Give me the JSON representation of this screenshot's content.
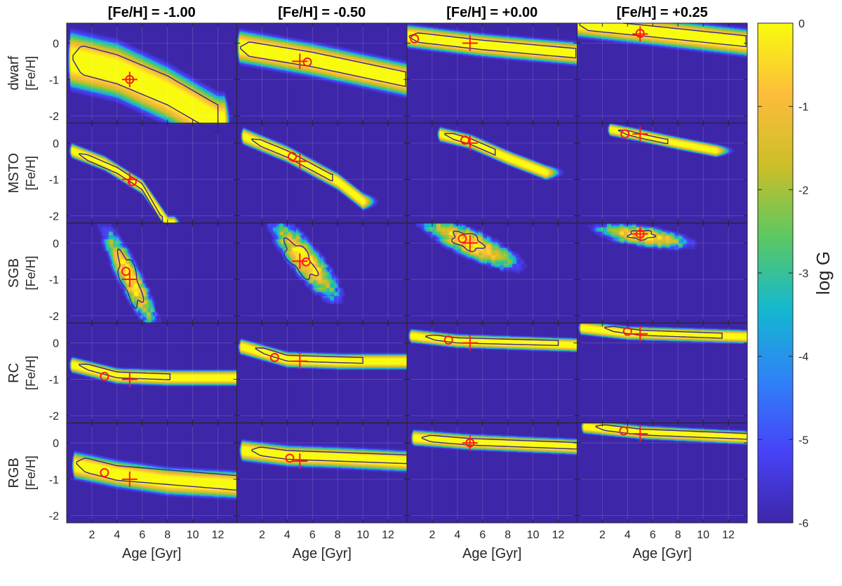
{
  "chart_data": {
    "type": "heatmap",
    "panel_titles": [
      "[Fe/H] = -1.00",
      "[Fe/H] = -0.50",
      "[Fe/H] = +0.00",
      "[Fe/H] = +0.25"
    ],
    "row_labels": [
      "dwarf",
      "MSTO",
      "SGB",
      "RC",
      "RGB"
    ],
    "ylabel": "[Fe/H]",
    "xlabel": "Age [Gyr]",
    "colorbar_label": "log G",
    "xlim": [
      0,
      13.5
    ],
    "ylim": [
      -2.2,
      0.55
    ],
    "x_ticks": [
      "2",
      "4",
      "6",
      "8",
      "10",
      "12"
    ],
    "y_ticks": [
      "0",
      "-1",
      "-2"
    ],
    "colorbar_range": [
      -6,
      0
    ],
    "colorbar_ticks": [
      "0",
      "-1",
      "-2",
      "-3",
      "-4",
      "-5",
      "-6"
    ],
    "true_age_gyr": 5,
    "true_feh": [
      -1.0,
      -0.5,
      0.0,
      0.25
    ],
    "estimates": [
      [
        [
          5.0,
          -1.0
        ],
        [
          5.6,
          -0.52
        ],
        [
          0.6,
          0.12
        ],
        [
          5.0,
          0.27
        ]
      ],
      [
        [
          5.2,
          -1.06
        ],
        [
          4.4,
          -0.37
        ],
        [
          4.6,
          0.08
        ],
        [
          3.8,
          0.25
        ]
      ],
      [
        [
          4.7,
          -0.78
        ],
        [
          5.5,
          -0.52
        ],
        [
          4.4,
          0.12
        ],
        [
          5.0,
          0.25
        ]
      ],
      [
        [
          3.0,
          -0.92
        ],
        [
          3.0,
          -0.4
        ],
        [
          3.3,
          0.08
        ],
        [
          4.0,
          0.32
        ]
      ],
      [
        [
          3.0,
          -0.82
        ],
        [
          4.2,
          -0.42
        ],
        [
          5.0,
          0.0
        ],
        [
          3.7,
          0.33
        ]
      ]
    ],
    "colors": {
      "colormap": [
        "#3e26a8",
        "#4743f8",
        "#2f82f7",
        "#14b8cf",
        "#5bc862",
        "#cbbf27",
        "#fdbc3c",
        "#f9fb0e"
      ],
      "contour": "#352a87",
      "marker": "#ff1a1a"
    }
  }
}
